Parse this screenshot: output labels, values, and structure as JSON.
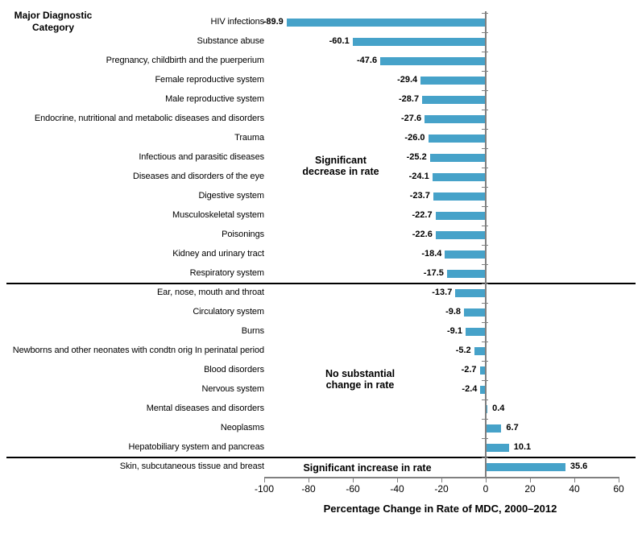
{
  "corner_title": "Major Diagnostic Category",
  "chart_data": {
    "type": "bar",
    "orientation": "horizontal",
    "xlabel": "Percentage Change in Rate of MDC, 2000–2012",
    "ylabel": "Major Diagnostic Category",
    "xlim": [
      -100,
      60
    ],
    "grid": false,
    "x_tick_values": [
      -100,
      -80,
      -60,
      -40,
      -20,
      0,
      20,
      40,
      60
    ],
    "x_tick_labels": [
      "-100",
      "-80",
      "-60",
      "-40",
      "-20",
      "0",
      "20",
      "40",
      "60"
    ],
    "categories": [
      "HIV infections",
      "Substance abuse",
      "Pregnancy, childbirth and the puerperium",
      "Female reproductive system",
      "Male reproductive system",
      "Endocrine, nutritional and metabolic diseases and disorders",
      "Trauma",
      "Infectious and parasitic diseases",
      "Diseases and disorders of the eye",
      "Digestive system",
      "Musculoskeletal system",
      "Poisonings",
      "Kidney and urinary tract",
      "Respiratory system",
      "Ear, nose, mouth and throat",
      "Circulatory system",
      "Burns",
      "Newborns and other neonates with condtn orig In perinatal period",
      "Blood disorders",
      "Nervous system",
      "Mental diseases and disorders",
      "Neoplasms",
      "Hepatobiliary system and pancreas",
      "Skin, subcutaneous tissue and breast"
    ],
    "values": [
      -89.9,
      -60.1,
      -47.6,
      -29.4,
      -28.7,
      -27.6,
      -26.0,
      -25.2,
      -24.1,
      -23.7,
      -22.7,
      -22.6,
      -18.4,
      -17.5,
      -13.7,
      -9.8,
      -9.1,
      -5.2,
      -2.7,
      -2.4,
      0.4,
      6.7,
      10.1,
      35.6
    ],
    "value_labels": [
      "-89.9",
      "-60.1",
      "-47.6",
      "-29.4",
      "-28.7",
      "-27.6",
      "-26.0",
      "-25.2",
      "-24.1",
      "-23.7",
      "-22.7",
      "-22.6",
      "-18.4",
      "-17.5",
      "-13.7",
      "-9.8",
      "-9.1",
      "-5.2",
      "-2.7",
      "-2.4",
      "0.4",
      "6.7",
      "10.1",
      "35.6"
    ],
    "sections": [
      {
        "name": "significant-decrease",
        "annotation_lines": [
          "Significant",
          "decrease in rate"
        ],
        "first_row": 0,
        "last_row": 13
      },
      {
        "name": "no-substantial-change",
        "annotation_lines": [
          "No substantial",
          "change in rate"
        ],
        "first_row": 14,
        "last_row": 22
      },
      {
        "name": "significant-increase",
        "annotation_lines": [
          "Significant increase in rate"
        ],
        "first_row": 23,
        "last_row": 23
      }
    ],
    "dividers_after_index": [
      13,
      22
    ],
    "colors": {
      "bar": "#46A2C9",
      "axis": "#808080",
      "divider": "#000000",
      "text": "#000000"
    }
  }
}
